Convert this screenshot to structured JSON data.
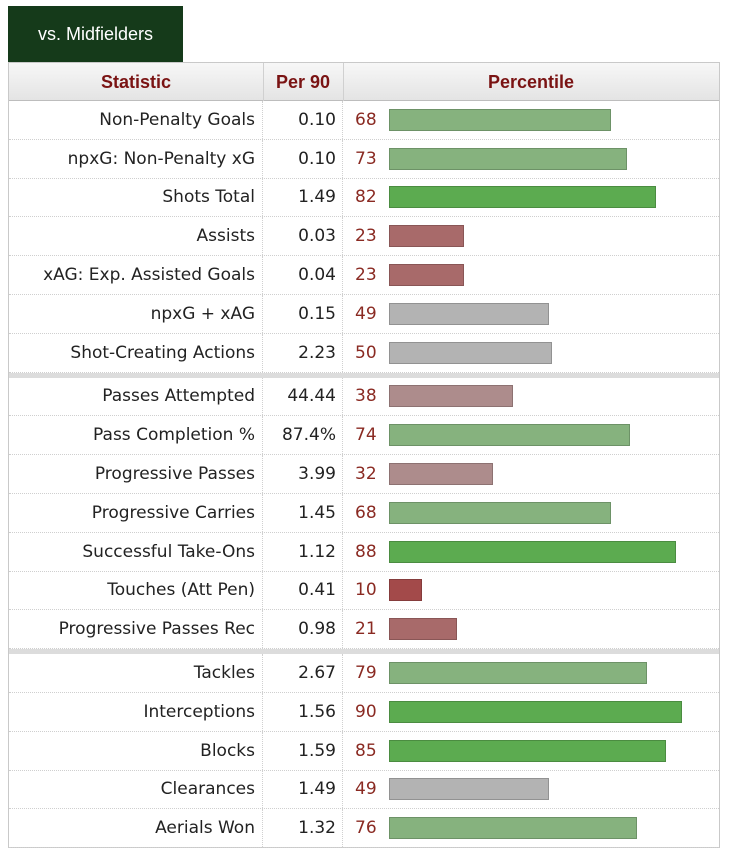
{
  "tab": {
    "label": "vs. Midfielders"
  },
  "header": {
    "statistic": "Statistic",
    "per90": "Per 90",
    "percentile": "Percentile"
  },
  "colors": {
    "high": "#5cab50",
    "mid_high": "#86b27e",
    "neutral": "#b3b3b3",
    "mid_low": "#ad8c8c",
    "low": "#a86a6a",
    "very_low": "#a34a4a"
  },
  "chart_data": {
    "type": "bar",
    "title": "",
    "xlabel": "Percentile",
    "ylabel": "",
    "xlim": [
      0,
      100
    ],
    "groups": [
      {
        "rows": [
          {
            "statistic": "Non-Penalty Goals",
            "per90": "0.10",
            "percentile": 68
          },
          {
            "statistic": "npxG: Non-Penalty xG",
            "per90": "0.10",
            "percentile": 73
          },
          {
            "statistic": "Shots Total",
            "per90": "1.49",
            "percentile": 82
          },
          {
            "statistic": "Assists",
            "per90": "0.03",
            "percentile": 23
          },
          {
            "statistic": "xAG: Exp. Assisted Goals",
            "per90": "0.04",
            "percentile": 23
          },
          {
            "statistic": "npxG + xAG",
            "per90": "0.15",
            "percentile": 49
          },
          {
            "statistic": "Shot-Creating Actions",
            "per90": "2.23",
            "percentile": 50
          }
        ]
      },
      {
        "rows": [
          {
            "statistic": "Passes Attempted",
            "per90": "44.44",
            "percentile": 38
          },
          {
            "statistic": "Pass Completion %",
            "per90": "87.4%",
            "percentile": 74
          },
          {
            "statistic": "Progressive Passes",
            "per90": "3.99",
            "percentile": 32
          },
          {
            "statistic": "Progressive Carries",
            "per90": "1.45",
            "percentile": 68
          },
          {
            "statistic": "Successful Take-Ons",
            "per90": "1.12",
            "percentile": 88
          },
          {
            "statistic": "Touches (Att Pen)",
            "per90": "0.41",
            "percentile": 10
          },
          {
            "statistic": "Progressive Passes Rec",
            "per90": "0.98",
            "percentile": 21
          }
        ]
      },
      {
        "rows": [
          {
            "statistic": "Tackles",
            "per90": "2.67",
            "percentile": 79
          },
          {
            "statistic": "Interceptions",
            "per90": "1.56",
            "percentile": 90
          },
          {
            "statistic": "Blocks",
            "per90": "1.59",
            "percentile": 85
          },
          {
            "statistic": "Clearances",
            "per90": "1.49",
            "percentile": 49
          },
          {
            "statistic": "Aerials Won",
            "per90": "1.32",
            "percentile": 76
          }
        ]
      }
    ]
  }
}
